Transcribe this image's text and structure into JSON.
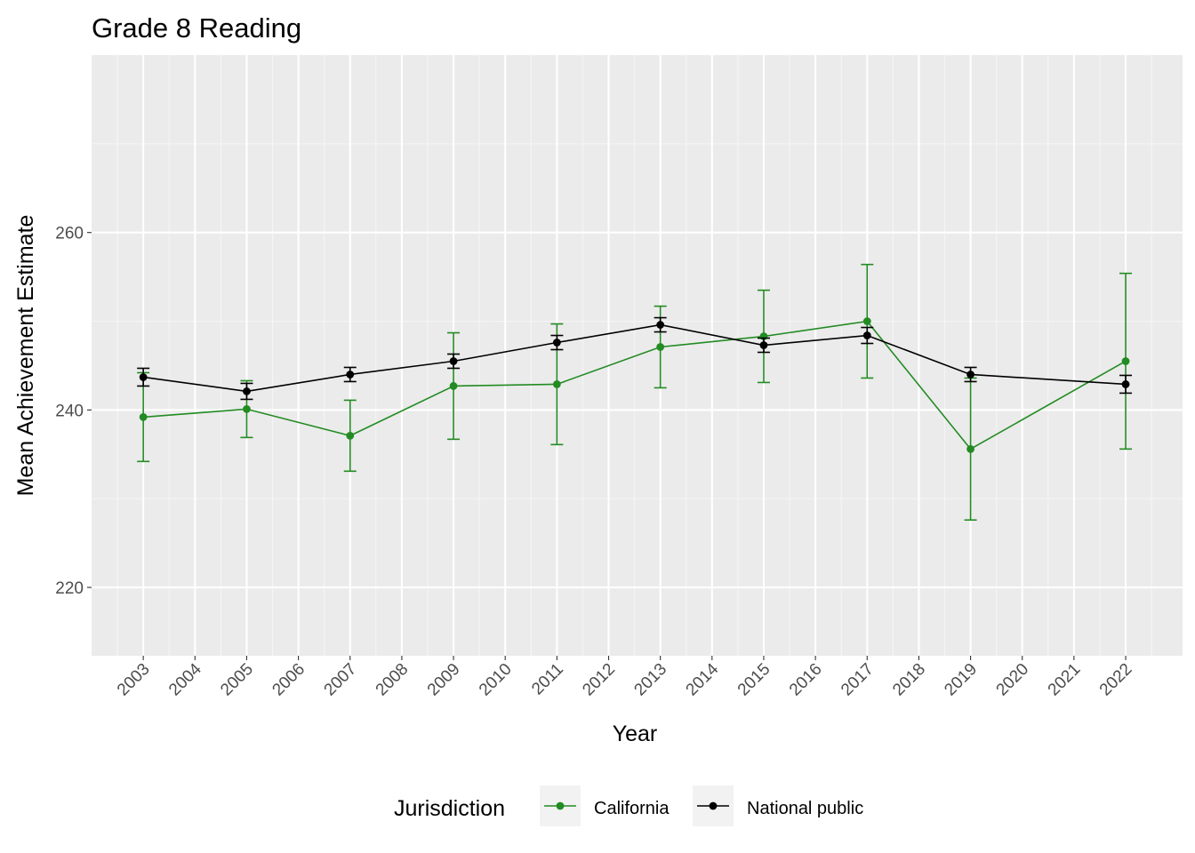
{
  "chart_data": {
    "type": "line",
    "title": "Grade 8 Reading",
    "xlabel": "Year",
    "ylabel": "Mean Achievement Estimate",
    "x_ticks": [
      "2003",
      "2004",
      "2005",
      "2006",
      "2007",
      "2008",
      "2009",
      "2010",
      "2011",
      "2012",
      "2013",
      "2014",
      "2015",
      "2016",
      "2017",
      "2018",
      "2019",
      "2020",
      "2021",
      "2022"
    ],
    "y_ticks": [
      220,
      240,
      260
    ],
    "xlim": [
      2002,
      2023.1
    ],
    "ylim": [
      212.3,
      280
    ],
    "grid": true,
    "error_bars": true,
    "legend": {
      "title": "Jurisdiction",
      "position": "bottom",
      "entries": [
        "California",
        "National public"
      ]
    },
    "series": [
      {
        "name": "California",
        "color": "#228b22",
        "points": [
          {
            "x": 2003,
            "y": 239.2,
            "lo": 234.2,
            "hi": 244.2
          },
          {
            "x": 2005,
            "y": 240.1,
            "lo": 236.9,
            "hi": 243.3
          },
          {
            "x": 2007,
            "y": 237.1,
            "lo": 233.1,
            "hi": 241.1
          },
          {
            "x": 2009,
            "y": 242.7,
            "lo": 236.7,
            "hi": 248.7
          },
          {
            "x": 2011,
            "y": 242.9,
            "lo": 236.1,
            "hi": 249.7
          },
          {
            "x": 2013,
            "y": 247.1,
            "lo": 242.5,
            "hi": 251.7
          },
          {
            "x": 2015,
            "y": 248.3,
            "lo": 243.1,
            "hi": 253.5
          },
          {
            "x": 2017,
            "y": 250.0,
            "lo": 243.6,
            "hi": 256.4
          },
          {
            "x": 2019,
            "y": 235.6,
            "lo": 227.6,
            "hi": 243.6
          },
          {
            "x": 2022,
            "y": 245.5,
            "lo": 235.6,
            "hi": 255.4
          }
        ]
      },
      {
        "name": "National public",
        "color": "#000000",
        "points": [
          {
            "x": 2003,
            "y": 243.7,
            "lo": 242.7,
            "hi": 244.7
          },
          {
            "x": 2005,
            "y": 242.1,
            "lo": 241.2,
            "hi": 243.0
          },
          {
            "x": 2007,
            "y": 244.0,
            "lo": 243.2,
            "hi": 244.8
          },
          {
            "x": 2009,
            "y": 245.5,
            "lo": 244.7,
            "hi": 246.3
          },
          {
            "x": 2011,
            "y": 247.6,
            "lo": 246.8,
            "hi": 248.4
          },
          {
            "x": 2013,
            "y": 249.6,
            "lo": 248.8,
            "hi": 250.4
          },
          {
            "x": 2015,
            "y": 247.3,
            "lo": 246.5,
            "hi": 248.1
          },
          {
            "x": 2017,
            "y": 248.4,
            "lo": 247.5,
            "hi": 249.3
          },
          {
            "x": 2019,
            "y": 244.0,
            "lo": 243.2,
            "hi": 244.8
          },
          {
            "x": 2022,
            "y": 242.9,
            "lo": 241.9,
            "hi": 243.9
          }
        ]
      }
    ]
  }
}
